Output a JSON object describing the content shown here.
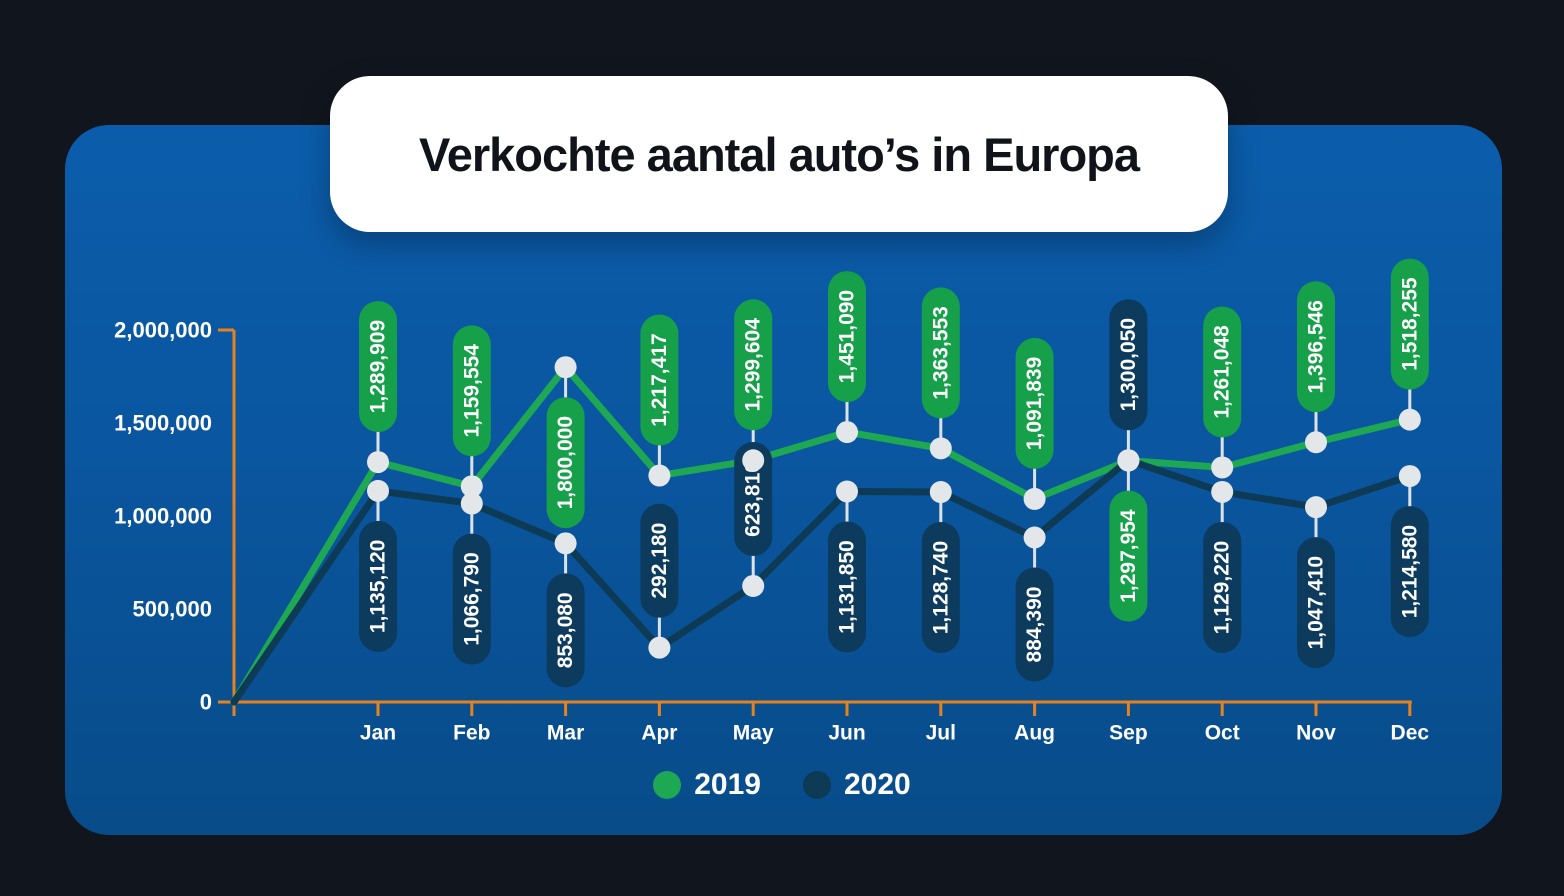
{
  "chart_data": {
    "type": "line",
    "title": "Verkochte aantal auto’s in Europa",
    "categories": [
      "Jan",
      "Feb",
      "Mar",
      "Apr",
      "May",
      "Jun",
      "Jul",
      "Aug",
      "Sep",
      "Oct",
      "Nov",
      "Dec"
    ],
    "series": [
      {
        "name": "2019",
        "color": "#1ea854",
        "pill_color": "#16a04a",
        "values": [
          1289909,
          1159554,
          1800000,
          1217417,
          1299604,
          1451090,
          1363553,
          1091839,
          1297954,
          1261048,
          1396546,
          1518255
        ],
        "label_side": [
          "above",
          "above",
          "below",
          "above",
          "above",
          "above",
          "above",
          "above",
          "below",
          "above",
          "above",
          "above"
        ]
      },
      {
        "name": "2020",
        "color": "#0d3a55",
        "pill_color": "#0c3b5e",
        "values": [
          1135120,
          1066790,
          853080,
          292180,
          623810,
          1131850,
          1128740,
          884390,
          1300050,
          1129220,
          1047410,
          1214580
        ],
        "label_side": [
          "below",
          "below",
          "below",
          "above",
          "above",
          "below",
          "below",
          "below",
          "above",
          "below",
          "below",
          "below"
        ]
      }
    ],
    "y_ticks": [
      {
        "value": 0,
        "label": "0"
      },
      {
        "value": 500000,
        "label": "500,000"
      },
      {
        "value": 1000000,
        "label": "1,000,000"
      },
      {
        "value": 1500000,
        "label": "1,500,000"
      },
      {
        "value": 2000000,
        "label": "2,000,000"
      }
    ],
    "ylim": [
      0,
      2000000
    ],
    "xlabel": "",
    "ylabel": "",
    "grid": false,
    "legend_position": "bottom",
    "lines_start_at_origin": true,
    "axis_color": "#e5821f",
    "marker_color": "#e3e7ea",
    "connector_color": "#dde2e7",
    "value_label_text_color": "#ffffff",
    "tick_label_color": "#ffffff"
  }
}
